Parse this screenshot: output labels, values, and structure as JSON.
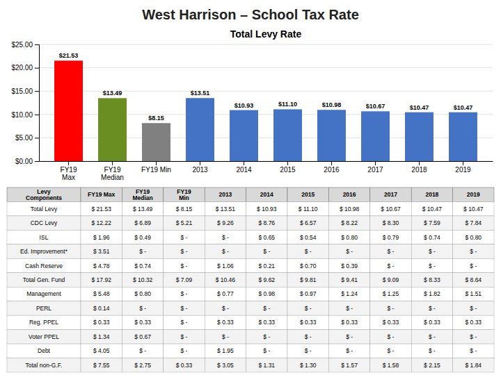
{
  "title": "West Harrison – School Tax Rate",
  "chart_data": [
    {
      "type": "bar",
      "title": "Total Levy Rate",
      "categories": [
        "FY19\nMax",
        "FY19\nMedian",
        "FY19 Min",
        "2013",
        "2014",
        "2015",
        "2016",
        "2017",
        "2018",
        "2019"
      ],
      "values": [
        21.53,
        13.49,
        8.15,
        13.51,
        10.93,
        11.1,
        10.98,
        10.67,
        10.47,
        10.47
      ],
      "value_labels": [
        "$21.53",
        "$13.49",
        "$8.15",
        "$13.51",
        "$10.93",
        "$11.10",
        "$10.98",
        "$10.67",
        "$10.47",
        "$10.47"
      ],
      "colors": [
        "#FF0000",
        "#6B8E23",
        "#808080",
        "#4472C4",
        "#4472C4",
        "#4472C4",
        "#4472C4",
        "#4472C4",
        "#4472C4",
        "#4472C4"
      ],
      "data_labels": true,
      "ylim": [
        0,
        25
      ],
      "yticks": [
        {
          "value": 0,
          "label": "$0.00"
        },
        {
          "value": 5,
          "label": "$5.00"
        },
        {
          "value": 10,
          "label": "$10.00"
        },
        {
          "value": 15,
          "label": "$15.00"
        },
        {
          "value": 20,
          "label": "$20.00"
        },
        {
          "value": 25,
          "label": "$25.00"
        }
      ],
      "grid": true
    },
    {
      "type": "table",
      "columns": [
        "Levy\nComponents",
        "FY19 Max",
        "FY19\nMedian",
        "FY19\nMin",
        "2013",
        "2014",
        "2015",
        "2016",
        "2017",
        "2018",
        "2019"
      ],
      "rows": [
        [
          "Total Levy",
          "$ 21.53",
          "$ 13.49",
          "$ 8.15",
          "$ 13.51",
          "$ 10.93",
          "$ 11.10",
          "$ 10.98",
          "$ 10.67",
          "$ 10.47",
          "$ 10.47"
        ],
        [
          "CDC Levy",
          "$ 12.22",
          "$ 6.89",
          "$ 5.21",
          "$ 9.26",
          "$ 8.76",
          "$ 6.57",
          "$ 8.22",
          "$ 8.30",
          "$ 7.59",
          "$ 7.84"
        ],
        [
          "ISL",
          "$ 1.96",
          "$ 0.49",
          "$ -",
          "$ -",
          "$ 0.65",
          "$ 0.54",
          "$ 0.80",
          "$ 0.79",
          "$ 0.74",
          "$ 0.80"
        ],
        [
          "Ed. Improvement*",
          "$ 3.51",
          "$ -",
          "$ -",
          "$ -",
          "$ -",
          "$ -",
          "$ -",
          "$ -",
          "$ -",
          "$ -"
        ],
        [
          "Cash Reserve",
          "$ 4.78",
          "$ 0.74",
          "$ -",
          "$ 1.06",
          "$ 0.21",
          "$ 0.70",
          "$ 0.39",
          "$ -",
          "$ -",
          "$ -"
        ],
        [
          "Total Gen. Fund",
          "$ 17.92",
          "$ 10.32",
          "$ 7.09",
          "$ 10.46",
          "$ 9.62",
          "$ 9.81",
          "$ 9.41",
          "$ 9.09",
          "$ 8.33",
          "$ 8.64"
        ],
        [
          "Management",
          "$ 5.48",
          "$ 0.80",
          "$ -",
          "$ 0.77",
          "$ 0.98",
          "$ 0.97",
          "$ 1.24",
          "$ 1.25",
          "$ 1.82",
          "$ 1.51"
        ],
        [
          "PERL",
          "$ 0.14",
          "$ -",
          "$ -",
          "$ -",
          "$ -",
          "$ -",
          "$ -",
          "$ -",
          "$ -",
          "$ -"
        ],
        [
          "Reg. PPEL",
          "$ 0.33",
          "$ 0.33",
          "$ -",
          "$ 0.33",
          "$ 0.33",
          "$ 0.33",
          "$ 0.33",
          "$ 0.33",
          "$ 0.33",
          "$ 0.33"
        ],
        [
          "Voter PPEL",
          "$ 1.34",
          "$ 0.67",
          "$ -",
          "$ -",
          "$ -",
          "$ -",
          "$ -",
          "$ -",
          "$ -",
          "$ -"
        ],
        [
          "Debt",
          "$ 4.05",
          "$ -",
          "$ -",
          "$ 1.95",
          "$ -",
          "$ -",
          "$ -",
          "$ -",
          "$ -",
          "$ -"
        ],
        [
          "Total non-G.F.",
          "$ 7.55",
          "$ 2.75",
          "$ 0.33",
          "$ 3.05",
          "$ 1.31",
          "$ 1.30",
          "$ 1.57",
          "$ 1.58",
          "$ 2.15",
          "$ 1.84"
        ]
      ]
    }
  ]
}
